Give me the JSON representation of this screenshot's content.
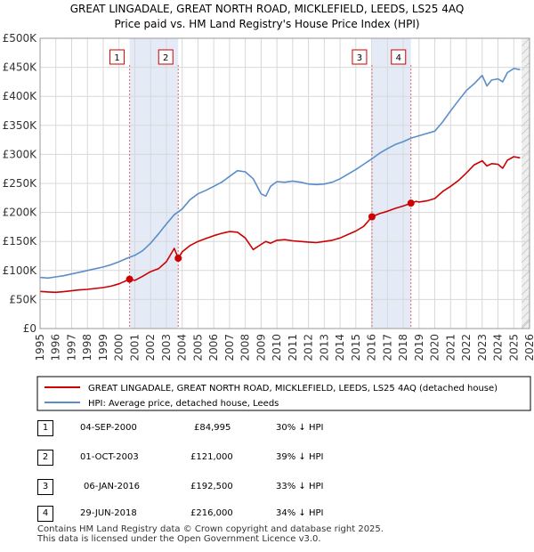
{
  "chart_data": {
    "type": "line",
    "title": "GREAT LINGADALE, GREAT NORTH ROAD, MICKLEFIELD, LEEDS, LS25 4AQ",
    "subtitle": "Price paid vs. HM Land Registry's House Price Index (HPI)",
    "xlim": [
      1995,
      2026
    ],
    "ylim": [
      0,
      500000
    ],
    "x_ticks": [
      1995,
      1996,
      1997,
      1998,
      1999,
      2000,
      2001,
      2002,
      2003,
      2004,
      2005,
      2006,
      2007,
      2008,
      2009,
      2010,
      2011,
      2012,
      2013,
      2014,
      2015,
      2016,
      2017,
      2018,
      2019,
      2020,
      2021,
      2022,
      2023,
      2024,
      2025,
      2026
    ],
    "y_ticks": [
      {
        "value": 0,
        "label": "£0"
      },
      {
        "value": 50000,
        "label": "£50K"
      },
      {
        "value": 100000,
        "label": "£100K"
      },
      {
        "value": 150000,
        "label": "£150K"
      },
      {
        "value": 200000,
        "label": "£200K"
      },
      {
        "value": 250000,
        "label": "£250K"
      },
      {
        "value": 300000,
        "label": "£300K"
      },
      {
        "value": 350000,
        "label": "£350K"
      },
      {
        "value": 400000,
        "label": "£400K"
      },
      {
        "value": 450000,
        "label": "£450K"
      },
      {
        "value": 500000,
        "label": "£500K"
      }
    ],
    "series": [
      {
        "name": "GREAT LINGADALE, GREAT NORTH ROAD, MICKLEFIELD, LEEDS, LS25 4AQ (detached house)",
        "color": "#cc0000",
        "x": [
          1995.0,
          1995.5,
          1996.0,
          1996.5,
          1997.0,
          1997.5,
          1998.0,
          1998.5,
          1999.0,
          1999.5,
          2000.0,
          2000.67,
          2001.0,
          2001.5,
          2002.0,
          2002.5,
          2003.0,
          2003.5,
          2003.75,
          2004.0,
          2004.5,
          2005.0,
          2005.5,
          2006.0,
          2006.5,
          2007.0,
          2007.5,
          2008.0,
          2008.5,
          2009.0,
          2009.3,
          2009.6,
          2010.0,
          2010.5,
          2011.0,
          2011.5,
          2012.0,
          2012.5,
          2013.0,
          2013.5,
          2014.0,
          2014.5,
          2015.0,
          2015.5,
          2016.02,
          2016.5,
          2017.0,
          2017.5,
          2018.0,
          2018.49,
          2018.8,
          2019.0,
          2019.5,
          2020.0,
          2020.5,
          2021.0,
          2021.5,
          2022.0,
          2022.5,
          2023.0,
          2023.3,
          2023.6,
          2024.0,
          2024.3,
          2024.6,
          2025.0,
          2025.4
        ],
        "values": [
          64000,
          63000,
          62500,
          63500,
          65000,
          66500,
          67500,
          69000,
          70500,
          73000,
          77000,
          84995,
          83000,
          90000,
          98000,
          103000,
          115000,
          138000,
          121000,
          132000,
          143000,
          150000,
          155000,
          160000,
          164000,
          167000,
          166000,
          156000,
          136000,
          145000,
          150000,
          147000,
          152000,
          153000,
          151000,
          150000,
          149000,
          148000,
          150000,
          152000,
          156000,
          162000,
          168000,
          176000,
          192500,
          198000,
          202000,
          207000,
          211000,
          216000,
          219000,
          218000,
          220000,
          224000,
          236000,
          245000,
          255000,
          268000,
          282000,
          289000,
          280000,
          284000,
          283000,
          276000,
          290000,
          296000,
          294000
        ]
      },
      {
        "name": "HPI: Average price, detached house, Leeds",
        "color": "#5b8ec9",
        "x": [
          1995.0,
          1995.5,
          1996.0,
          1996.5,
          1997.0,
          1997.5,
          1998.0,
          1998.5,
          1999.0,
          1999.5,
          2000.0,
          2000.5,
          2001.0,
          2001.5,
          2002.0,
          2002.5,
          2003.0,
          2003.5,
          2004.0,
          2004.5,
          2005.0,
          2005.5,
          2006.0,
          2006.5,
          2007.0,
          2007.5,
          2008.0,
          2008.5,
          2009.0,
          2009.3,
          2009.6,
          2010.0,
          2010.5,
          2011.0,
          2011.5,
          2012.0,
          2012.5,
          2013.0,
          2013.5,
          2014.0,
          2014.5,
          2015.0,
          2015.5,
          2016.0,
          2016.5,
          2017.0,
          2017.5,
          2018.0,
          2018.5,
          2019.0,
          2019.5,
          2020.0,
          2020.5,
          2021.0,
          2021.5,
          2022.0,
          2022.5,
          2023.0,
          2023.3,
          2023.6,
          2024.0,
          2024.3,
          2024.6,
          2025.0,
          2025.4
        ],
        "values": [
          88000,
          87000,
          89000,
          91000,
          94000,
          97000,
          100000,
          103000,
          106000,
          110000,
          115000,
          121000,
          126000,
          134000,
          147000,
          163000,
          180000,
          196000,
          206000,
          222000,
          232000,
          238000,
          245000,
          252000,
          262000,
          272000,
          270000,
          258000,
          232000,
          228000,
          245000,
          253000,
          252000,
          254000,
          252000,
          249000,
          248000,
          249000,
          252000,
          258000,
          266000,
          274000,
          283000,
          292000,
          302000,
          310000,
          317000,
          322000,
          328000,
          332000,
          336000,
          340000,
          356000,
          375000,
          393000,
          410000,
          422000,
          436000,
          418000,
          428000,
          430000,
          425000,
          441000,
          448000,
          446000
        ]
      }
    ],
    "sales": [
      {
        "number": "1",
        "date": "04-SEP-2000",
        "price": "£84,995",
        "x": 2000.67,
        "value": 84995,
        "hpi_diff": "30% ↓ HPI"
      },
      {
        "number": "2",
        "date": "01-OCT-2003",
        "price": "£121,000",
        "x": 2003.75,
        "value": 121000,
        "hpi_diff": "39% ↓ HPI"
      },
      {
        "number": "3",
        "date": "06-JAN-2016",
        "price": "£192,500",
        "x": 2016.02,
        "value": 192500,
        "hpi_diff": "33% ↓ HPI"
      },
      {
        "number": "4",
        "date": "29-JUN-2018",
        "price": "£216,000",
        "x": 2018.49,
        "value": 216000,
        "hpi_diff": "34% ↓ HPI"
      }
    ],
    "shaded_ranges": [
      [
        2000.67,
        2003.75
      ],
      [
        2016.02,
        2018.49
      ]
    ],
    "forecast_start": 2025.5,
    "legend": [
      "GREAT LINGADALE, GREAT NORTH ROAD, MICKLEFIELD, LEEDS, LS25 4AQ (detached house)",
      "HPI: Average price, detached house, Leeds"
    ]
  },
  "footer": {
    "line1": "Contains HM Land Registry data © Crown copyright and database right 2025.",
    "line2": "This data is licensed under the Open Government Licence v3.0."
  }
}
